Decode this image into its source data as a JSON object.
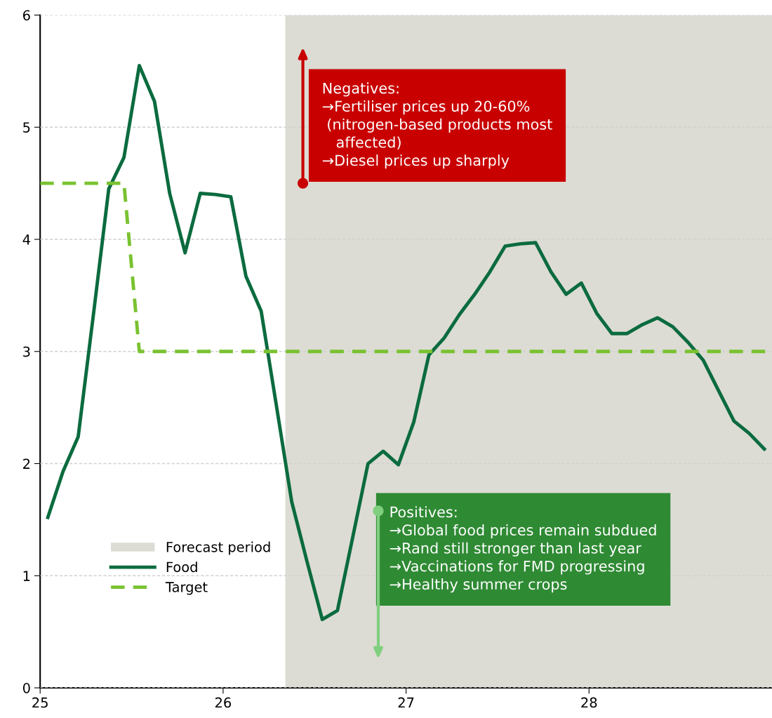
{
  "chart_data": {
    "type": "line",
    "xlim": [
      25,
      29
    ],
    "xticks": [
      25,
      26,
      27,
      28
    ],
    "ylim": [
      0,
      6
    ],
    "yticks": [
      0,
      1,
      2,
      3,
      4,
      5,
      6
    ],
    "grid": "y",
    "legend": "bottom left",
    "series": [
      {
        "name": "Food",
        "color": "#0b6b3f",
        "line_style": "solid",
        "x": [
          25.042,
          25.125,
          25.208,
          25.292,
          25.375,
          25.458,
          25.542,
          25.625,
          25.708,
          25.792,
          25.875,
          25.958,
          26.042,
          26.125,
          26.208,
          26.292,
          26.375,
          26.458,
          26.542,
          26.625,
          26.708,
          26.792,
          26.875,
          26.958,
          27.042,
          27.125,
          27.208,
          27.292,
          27.375,
          27.458,
          27.542,
          27.625,
          27.708,
          27.792,
          27.875,
          27.958,
          28.042,
          28.125,
          28.208,
          28.292,
          28.375,
          28.458,
          28.542,
          28.625,
          28.708,
          28.792,
          28.875,
          28.958
        ],
        "values": [
          1.52,
          1.93,
          2.24,
          3.34,
          4.45,
          4.73,
          5.55,
          5.23,
          4.41,
          3.88,
          4.41,
          4.4,
          4.38,
          3.67,
          3.36,
          2.51,
          1.66,
          1.13,
          0.61,
          0.69,
          1.34,
          2.0,
          2.11,
          1.99,
          2.37,
          2.97,
          3.12,
          3.33,
          3.51,
          3.71,
          3.94,
          3.96,
          3.97,
          3.71,
          3.51,
          3.61,
          3.34,
          3.16,
          3.16,
          3.24,
          3.3,
          3.22,
          3.08,
          2.92,
          2.65,
          2.38,
          2.27,
          2.13
        ]
      },
      {
        "name": "Target",
        "color": "#7ac231",
        "line_style": "dashed",
        "x": [
          25,
          25.458,
          25.542,
          29
        ],
        "values": [
          4.5,
          4.5,
          3.0,
          3.0
        ]
      }
    ],
    "bands": [
      {
        "axis": "x",
        "from": 26.34,
        "to": 29,
        "label": "Forecast period",
        "color": "#dcdcd4"
      }
    ],
    "annotations": [
      "Negatives:\n→Fertiliser prices up 20-60%\n (nitrogen-based products most\n   affected)\n→Diesel prices up sharply",
      "Positives:\n→Global food prices remain subdued\n→Rand still stronger than last year\n→Vaccinations for FMD progressing\n→Healthy summer crops"
    ]
  }
}
